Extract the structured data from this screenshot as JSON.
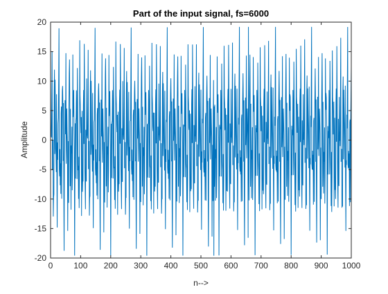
{
  "chart_data": {
    "type": "line",
    "title": "Part of the input signal, fs=6000",
    "xlabel": "n-->",
    "ylabel": "Amplitude",
    "xlim": [
      0,
      1000
    ],
    "ylim": [
      -20,
      20
    ],
    "xticks": [
      0,
      100,
      200,
      300,
      400,
      500,
      600,
      700,
      800,
      900,
      1000
    ],
    "yticks": [
      -20,
      -15,
      -10,
      -5,
      0,
      5,
      10,
      15,
      20
    ],
    "grid": false,
    "legend": "none",
    "series": [
      {
        "color": "#0072BD",
        "sample_interval": 1,
        "approx_peak": 19.2,
        "approx_trough": -19.6,
        "min_at": 543,
        "max_at": 658
      }
    ]
  }
}
